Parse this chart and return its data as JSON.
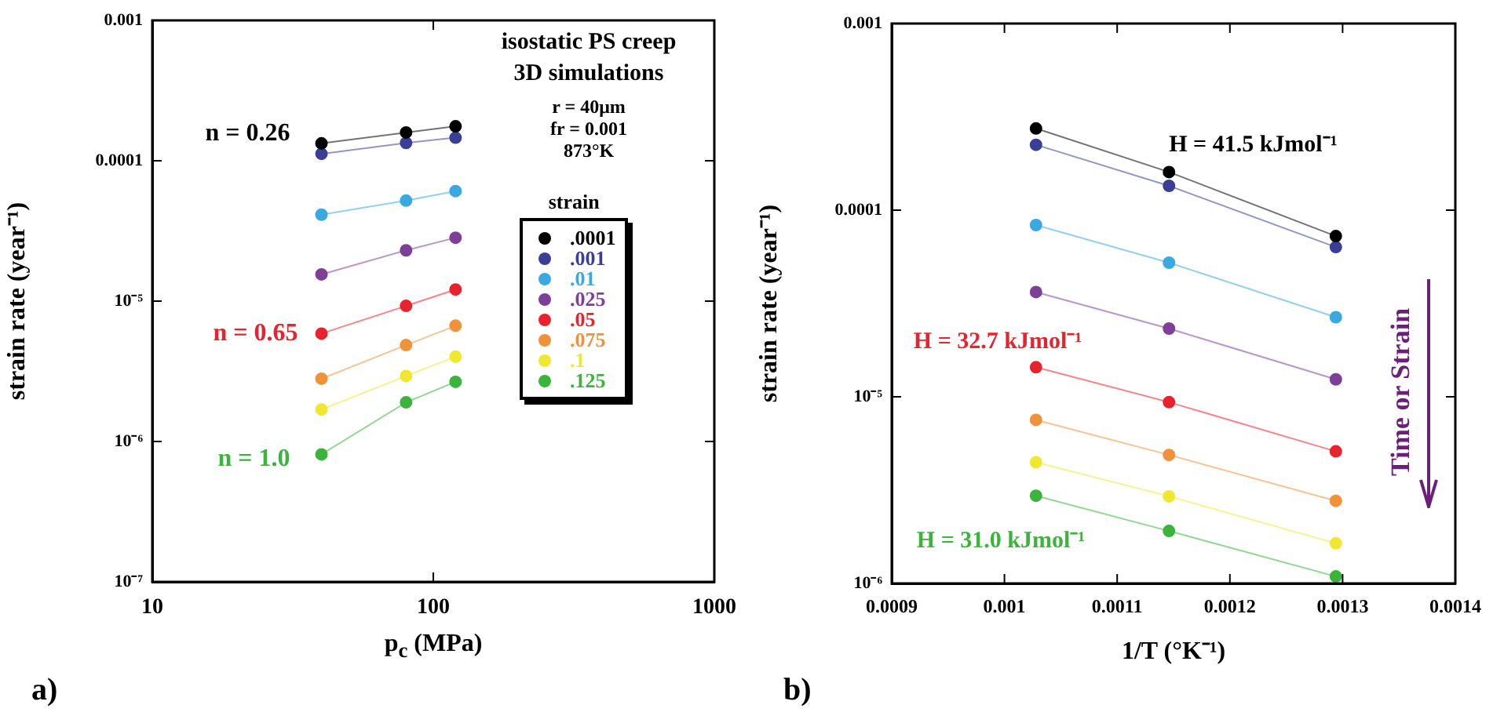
{
  "chart_data": [
    {
      "type": "line",
      "title": "isostatic PS creep 3D simulations",
      "xlabel": "p$_{c}$ (MPa)",
      "ylabel": "strain rate (year⁻¹)",
      "legend_title": "strain",
      "legend": "right",
      "log": "xy",
      "marker": "circle",
      "line_style": "solid",
      "x": [
        40,
        80,
        120
      ],
      "xlim": [
        10,
        1000
      ],
      "xticks": [
        10,
        100,
        1000
      ],
      "ylim": [
        1e-07,
        0.001
      ],
      "yticks": [
        {
          "value": 1e-07,
          "label": "10⁻⁷"
        },
        {
          "value": 1e-06,
          "label": "10⁻⁶"
        },
        {
          "value": 1e-05,
          "label": "10⁻⁵"
        },
        {
          "value": 0.0001,
          "label": "0.0001"
        },
        {
          "value": 0.001,
          "label": "0.001"
        }
      ],
      "series": [
        {
          "name": ".0001",
          "color": "#000000",
          "values": [
            0.000133,
            0.000159,
            0.000176
          ]
        },
        {
          "name": ".001",
          "color": "#3a3f95",
          "values": [
            0.000112,
            0.000134,
            0.000146
          ]
        },
        {
          "name": ".01",
          "color": "#3aa9e0",
          "values": [
            4.13e-05,
            5.2e-05,
            6.08e-05
          ]
        },
        {
          "name": ".025",
          "color": "#7d3f98",
          "values": [
            1.55e-05,
            2.3e-05,
            2.83e-05
          ]
        },
        {
          "name": ".05",
          "color": "#e8232e",
          "values": [
            5.87e-06,
            9.25e-06,
            1.21e-05
          ]
        },
        {
          "name": ".075",
          "color": "#f0923a",
          "values": [
            2.8e-06,
            4.86e-06,
            6.68e-06
          ]
        },
        {
          "name": ".1",
          "color": "#f0e830",
          "values": [
            1.69e-06,
            2.93e-06,
            4.02e-06
          ]
        },
        {
          "name": ".125",
          "color": "#3ab43a",
          "values": [
            8.1e-07,
            1.9e-06,
            2.66e-06
          ]
        }
      ],
      "annotations": [
        "r = 40μm",
        "fr = 0.001",
        "873°K",
        "n = 0.26",
        "n = 0.65",
        "n = 1.0",
        "a)"
      ]
    },
    {
      "type": "line",
      "xlabel": "1/T (°K⁻¹)",
      "ylabel": "strain rate (year⁻¹)",
      "log": "y",
      "marker": "circle",
      "line_style": "solid",
      "x": [
        0.001028,
        0.001146,
        0.001294
      ],
      "xlim": [
        0.0009,
        0.0014
      ],
      "xticks": [
        0.0009,
        0.001,
        0.0011,
        0.0012,
        0.0013,
        0.0014
      ],
      "ylim": [
        1e-06,
        0.001
      ],
      "yticks": [
        {
          "value": 1e-06,
          "label": "10⁻⁶"
        },
        {
          "value": 1e-05,
          "label": "10⁻⁵"
        },
        {
          "value": 0.0001,
          "label": "0.0001"
        },
        {
          "value": 0.001,
          "label": "0.001"
        }
      ],
      "series": [
        {
          "color": "#000000",
          "values": [
            0.000274,
            0.00016,
            7.26e-05
          ]
        },
        {
          "color": "#3a3f95",
          "values": [
            0.000224,
            0.000135,
            6.34e-05
          ]
        },
        {
          "color": "#3aa9e0",
          "values": [
            8.32e-05,
            5.23e-05,
            2.67e-05
          ]
        },
        {
          "color": "#7d3f98",
          "values": [
            3.64e-05,
            2.32e-05,
            1.24e-05
          ]
        },
        {
          "color": "#e8232e",
          "values": [
            1.44e-05,
            9.36e-06,
            5.1e-06
          ]
        },
        {
          "color": "#f0923a",
          "values": [
            7.52e-06,
            4.88e-06,
            2.77e-06
          ]
        },
        {
          "color": "#f0e830",
          "values": [
            4.46e-06,
            2.93e-06,
            1.64e-06
          ]
        },
        {
          "color": "#3ab43a",
          "values": [
            2.95e-06,
            1.91e-06,
            1.09e-06
          ]
        }
      ],
      "annotations": [
        "H = 41.5 kJmol⁻¹",
        "H = 32.7 kJmol⁻¹",
        "H = 31.0 kJmol⁻¹",
        "Time or Strain",
        "b)"
      ]
    }
  ]
}
